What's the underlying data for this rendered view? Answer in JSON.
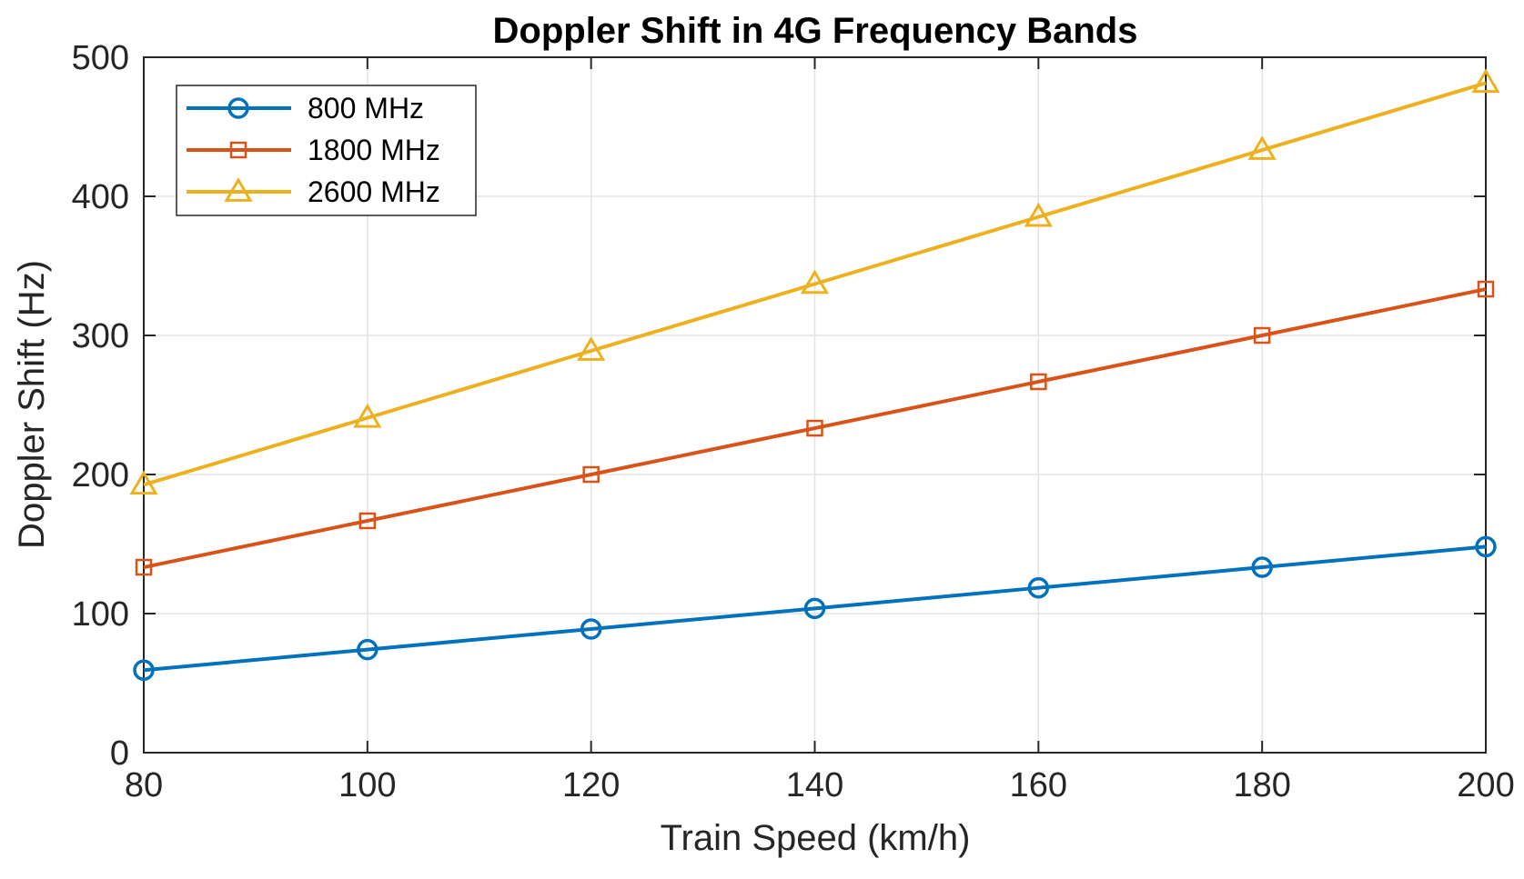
{
  "chart_data": {
    "type": "line",
    "title": "Doppler Shift in 4G Frequency Bands",
    "xlabel": "Train Speed (km/h)",
    "ylabel": "Doppler Shift (Hz)",
    "xlim": [
      80,
      200
    ],
    "ylim": [
      0,
      500
    ],
    "xticks": [
      80,
      100,
      120,
      140,
      160,
      180,
      200
    ],
    "yticks": [
      0,
      100,
      200,
      300,
      400,
      500
    ],
    "grid": true,
    "legend_location": "top-left",
    "x": [
      80,
      100,
      120,
      140,
      160,
      180,
      200
    ],
    "series": [
      {
        "name": "800 MHz",
        "color": "#0072BD",
        "marker": "circle",
        "values": [
          59.3,
          74.1,
          88.9,
          103.7,
          118.5,
          133.3,
          148.1
        ]
      },
      {
        "name": "1800 MHz",
        "color": "#D95319",
        "marker": "square",
        "values": [
          133.3,
          166.7,
          200.0,
          233.3,
          266.7,
          300.0,
          333.3
        ]
      },
      {
        "name": "2600 MHz",
        "color": "#EDB120",
        "marker": "triangle",
        "values": [
          192.6,
          240.7,
          288.9,
          337.0,
          385.2,
          433.3,
          481.5
        ]
      }
    ]
  }
}
